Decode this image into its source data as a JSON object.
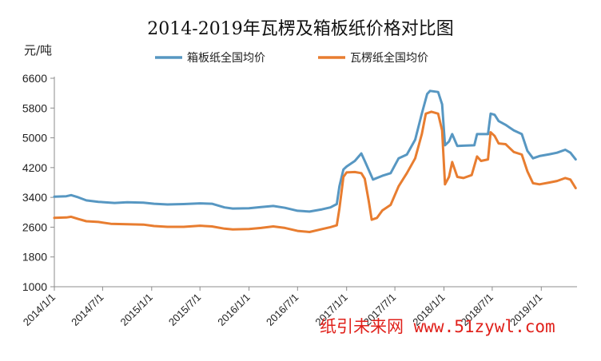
{
  "chart_data": {
    "type": "line",
    "title": "2014-2019年瓦楞及箱板纸价格对比图",
    "ylabel": "元/吨",
    "ylim": [
      1000,
      6600
    ],
    "yticks": [
      1000,
      1800,
      2600,
      3400,
      4200,
      5000,
      5800,
      6600
    ],
    "xlim": [
      "2014-01-01",
      "2019-05-15"
    ],
    "xticks": [
      "2014/1/1",
      "2014/7/1",
      "2015/1/1",
      "2015/7/1",
      "2016/1/1",
      "2016/7/1",
      "2017/1/1",
      "2017/7/1",
      "2018/1/1",
      "2018/7/1",
      "2019/1/1"
    ],
    "grid": false,
    "legend": "top",
    "series": [
      {
        "name": "箱板纸全国均价",
        "color": "#5797c2",
        "points": [
          [
            "2014-01-01",
            3420
          ],
          [
            "2014-02-15",
            3430
          ],
          [
            "2014-03-05",
            3460
          ],
          [
            "2014-04-01",
            3400
          ],
          [
            "2014-05-01",
            3320
          ],
          [
            "2014-06-15",
            3280
          ],
          [
            "2014-08-15",
            3250
          ],
          [
            "2014-10-01",
            3270
          ],
          [
            "2014-12-01",
            3260
          ],
          [
            "2015-01-10",
            3230
          ],
          [
            "2015-03-01",
            3210
          ],
          [
            "2015-05-01",
            3220
          ],
          [
            "2015-07-01",
            3240
          ],
          [
            "2015-08-15",
            3230
          ],
          [
            "2015-10-01",
            3130
          ],
          [
            "2015-11-01",
            3100
          ],
          [
            "2016-01-01",
            3110
          ],
          [
            "2016-02-15",
            3140
          ],
          [
            "2016-04-01",
            3170
          ],
          [
            "2016-05-15",
            3120
          ],
          [
            "2016-07-01",
            3040
          ],
          [
            "2016-08-15",
            3020
          ],
          [
            "2016-10-01",
            3080
          ],
          [
            "2016-11-01",
            3130
          ],
          [
            "2016-11-25",
            3220
          ],
          [
            "2016-12-05",
            3700
          ],
          [
            "2016-12-20",
            4150
          ],
          [
            "2017-01-01",
            4230
          ],
          [
            "2017-02-01",
            4380
          ],
          [
            "2017-02-25",
            4580
          ],
          [
            "2017-03-10",
            4380
          ],
          [
            "2017-04-10",
            3880
          ],
          [
            "2017-05-15",
            3980
          ],
          [
            "2017-06-15",
            4050
          ],
          [
            "2017-07-15",
            4450
          ],
          [
            "2017-08-15",
            4550
          ],
          [
            "2017-09-15",
            4950
          ],
          [
            "2017-10-10",
            5650
          ],
          [
            "2017-10-30",
            6180
          ],
          [
            "2017-11-10",
            6260
          ],
          [
            "2017-12-10",
            6230
          ],
          [
            "2017-12-25",
            5900
          ],
          [
            "2018-01-05",
            4800
          ],
          [
            "2018-01-20",
            4900
          ],
          [
            "2018-02-01",
            5100
          ],
          [
            "2018-02-20",
            4780
          ],
          [
            "2018-03-15",
            4790
          ],
          [
            "2018-04-25",
            4800
          ],
          [
            "2018-05-05",
            5100
          ],
          [
            "2018-05-25",
            5100
          ],
          [
            "2018-06-15",
            5100
          ],
          [
            "2018-06-25",
            5650
          ],
          [
            "2018-07-10",
            5620
          ],
          [
            "2018-07-25",
            5450
          ],
          [
            "2018-08-20",
            5350
          ],
          [
            "2018-09-20",
            5200
          ],
          [
            "2018-10-20",
            5100
          ],
          [
            "2018-11-10",
            4650
          ],
          [
            "2018-12-01",
            4450
          ],
          [
            "2018-12-25",
            4510
          ],
          [
            "2019-02-01",
            4560
          ],
          [
            "2019-03-01",
            4600
          ],
          [
            "2019-04-01",
            4680
          ],
          [
            "2019-04-20",
            4600
          ],
          [
            "2019-05-10",
            4420
          ]
        ]
      },
      {
        "name": "瓦楞纸全国均价",
        "color": "#e87d30",
        "points": [
          [
            "2014-01-01",
            2850
          ],
          [
            "2014-02-15",
            2860
          ],
          [
            "2014-03-05",
            2880
          ],
          [
            "2014-04-01",
            2820
          ],
          [
            "2014-05-01",
            2760
          ],
          [
            "2014-06-15",
            2740
          ],
          [
            "2014-08-01",
            2690
          ],
          [
            "2014-10-01",
            2680
          ],
          [
            "2014-12-01",
            2670
          ],
          [
            "2015-01-10",
            2630
          ],
          [
            "2015-03-01",
            2610
          ],
          [
            "2015-05-01",
            2610
          ],
          [
            "2015-07-01",
            2640
          ],
          [
            "2015-08-15",
            2620
          ],
          [
            "2015-10-01",
            2560
          ],
          [
            "2015-11-01",
            2540
          ],
          [
            "2016-01-01",
            2550
          ],
          [
            "2016-02-15",
            2580
          ],
          [
            "2016-04-01",
            2620
          ],
          [
            "2016-05-15",
            2580
          ],
          [
            "2016-07-01",
            2500
          ],
          [
            "2016-08-15",
            2470
          ],
          [
            "2016-10-01",
            2550
          ],
          [
            "2016-11-01",
            2600
          ],
          [
            "2016-11-25",
            2650
          ],
          [
            "2016-12-05",
            3100
          ],
          [
            "2016-12-20",
            3950
          ],
          [
            "2017-01-01",
            4070
          ],
          [
            "2017-02-01",
            4080
          ],
          [
            "2017-02-25",
            4050
          ],
          [
            "2017-03-10",
            3900
          ],
          [
            "2017-03-25",
            3300
          ],
          [
            "2017-04-05",
            2800
          ],
          [
            "2017-04-25",
            2850
          ],
          [
            "2017-05-15",
            3050
          ],
          [
            "2017-06-15",
            3200
          ],
          [
            "2017-07-15",
            3700
          ],
          [
            "2017-08-15",
            4050
          ],
          [
            "2017-09-15",
            4450
          ],
          [
            "2017-10-10",
            5100
          ],
          [
            "2017-10-25",
            5650
          ],
          [
            "2017-11-15",
            5700
          ],
          [
            "2017-12-10",
            5650
          ],
          [
            "2017-12-25",
            5200
          ],
          [
            "2018-01-05",
            3750
          ],
          [
            "2018-01-20",
            3950
          ],
          [
            "2018-02-01",
            4350
          ],
          [
            "2018-02-20",
            3950
          ],
          [
            "2018-03-15",
            3920
          ],
          [
            "2018-04-15",
            4000
          ],
          [
            "2018-05-05",
            4500
          ],
          [
            "2018-05-20",
            4380
          ],
          [
            "2018-06-15",
            4420
          ],
          [
            "2018-06-25",
            5150
          ],
          [
            "2018-07-10",
            5050
          ],
          [
            "2018-07-25",
            4850
          ],
          [
            "2018-08-20",
            4830
          ],
          [
            "2018-09-20",
            4620
          ],
          [
            "2018-10-20",
            4550
          ],
          [
            "2018-11-10",
            4100
          ],
          [
            "2018-12-01",
            3780
          ],
          [
            "2018-12-25",
            3750
          ],
          [
            "2019-02-01",
            3800
          ],
          [
            "2019-03-01",
            3840
          ],
          [
            "2019-04-01",
            3920
          ],
          [
            "2019-04-20",
            3880
          ],
          [
            "2019-05-10",
            3650
          ]
        ]
      }
    ]
  },
  "watermark": "纸引未来网 www.51zywl.com"
}
